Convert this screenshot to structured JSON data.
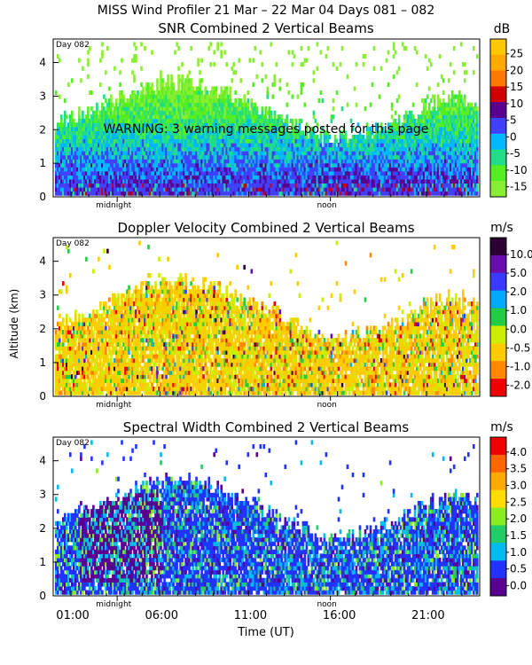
{
  "figure": {
    "title": "MISS Wind Profiler  21 Mar – 22 Mar 04 Days 081 – 082",
    "ylabel": "Altitude (km)",
    "xlabel": "Time (UT)",
    "x_ticks": [
      "01:00",
      "06:00",
      "11:00",
      "16:00",
      "21:00"
    ],
    "x_tick_hours": [
      1,
      6,
      11,
      16,
      21
    ],
    "day_label": "Day 082",
    "marker_labels": [
      "midnight",
      "noon"
    ],
    "marker_hours": [
      3.6,
      15.6
    ],
    "warning": "WARNING: 3 warning messages posted for this page"
  },
  "chart_data": [
    {
      "type": "heatmap",
      "title": "SNR Combined 2 Vertical Beams",
      "unit": "dB",
      "xlim": [
        0,
        24
      ],
      "ylim": [
        0,
        4.7
      ],
      "yticks": [
        0,
        1,
        2,
        3,
        4
      ],
      "colorbar": {
        "labels": [
          "25",
          "20",
          "15",
          "10",
          "5",
          "0",
          "-5",
          "-10",
          "-15"
        ],
        "colors": [
          "#ffc800",
          "#ffaa00",
          "#ff7800",
          "#d00000",
          "#5a0090",
          "#4040ff",
          "#00b8ff",
          "#22dd88",
          "#55ee22",
          "#88ee33"
        ]
      }
    },
    {
      "type": "heatmap",
      "title": "Doppler Velocity Combined 2 Vertical Beams",
      "unit": "m/s",
      "xlim": [
        0,
        24
      ],
      "ylim": [
        0,
        4.7
      ],
      "yticks": [
        0,
        1,
        2,
        3,
        4
      ],
      "colorbar": {
        "labels": [
          "10.0",
          "5.0",
          "2.0",
          "1.0",
          "0.0",
          "-0.5",
          "-1.0",
          "-2.0"
        ],
        "colors": [
          "#2b0033",
          "#6a0dad",
          "#3a3aff",
          "#00aaff",
          "#22cc44",
          "#ccee00",
          "#ffcc00",
          "#ff8800",
          "#ee0000"
        ]
      }
    },
    {
      "type": "heatmap",
      "title": "Spectral Width Combined 2 Vertical Beams",
      "unit": "m/s",
      "xlim": [
        0,
        24
      ],
      "ylim": [
        0,
        4.7
      ],
      "yticks": [
        0,
        1,
        2,
        3,
        4
      ],
      "colorbar": {
        "labels": [
          "4.0",
          "3.5",
          "3.0",
          "2.5",
          "2.0",
          "1.5",
          "1.0",
          "0.5",
          "0.0"
        ],
        "colors": [
          "#ee0000",
          "#ff6600",
          "#ffaa00",
          "#ffdd00",
          "#88ee22",
          "#22cc66",
          "#00bbee",
          "#2233ff",
          "#5a0090"
        ]
      }
    }
  ]
}
